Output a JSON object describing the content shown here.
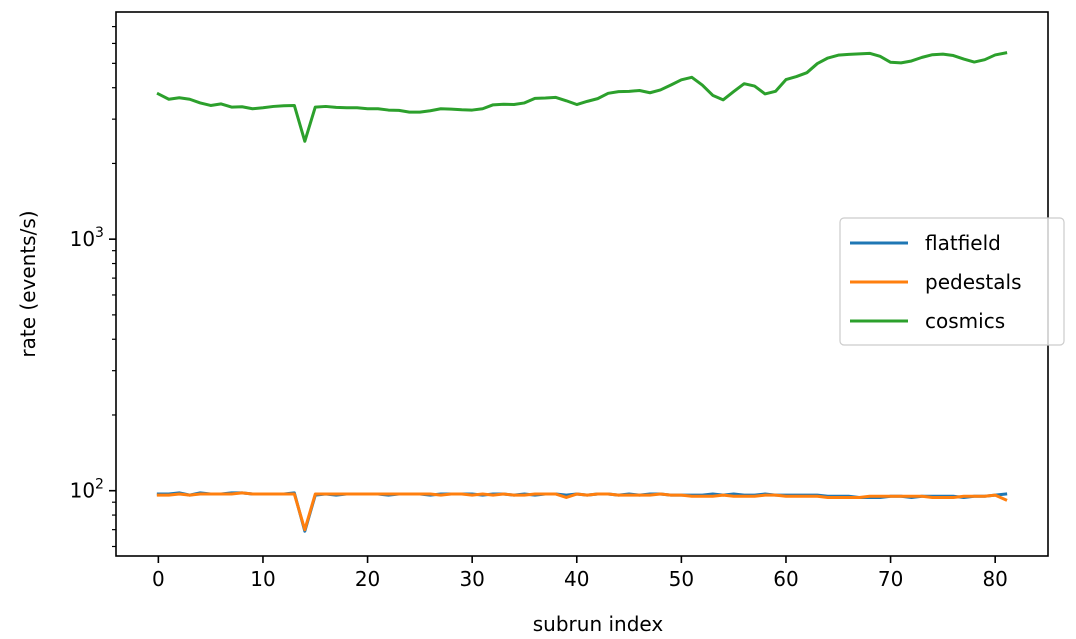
{
  "chart_data": {
    "type": "line",
    "title": "",
    "xlabel": "subrun index",
    "ylabel": "rate (events/s)",
    "xlim": [
      -4.05,
      85.05
    ],
    "ylim": [
      55,
      8000
    ],
    "yscale": "log",
    "grid": false,
    "legend_position": "center-right",
    "x_ticks": [
      0,
      10,
      20,
      30,
      40,
      50,
      60,
      70,
      80
    ],
    "y_major_ticks": [
      {
        "value": 100,
        "base": "10",
        "exp": "2"
      },
      {
        "value": 1000,
        "base": "10",
        "exp": "3"
      }
    ],
    "y_minor_ticks": [
      60,
      70,
      80,
      90,
      200,
      300,
      400,
      500,
      600,
      700,
      800,
      900,
      2000,
      3000,
      4000,
      5000,
      6000,
      7000
    ],
    "series": [
      {
        "name": "flatfield",
        "color": "#1f77b4",
        "values": [
          97,
          97,
          98,
          96,
          98,
          97,
          97,
          98,
          98,
          97,
          97,
          97,
          97,
          98,
          69,
          96,
          97,
          96,
          97,
          97,
          97,
          97,
          96,
          97,
          97,
          97,
          96,
          97,
          97,
          97,
          97,
          96,
          97,
          97,
          96,
          97,
          96,
          97,
          97,
          96,
          97,
          96,
          97,
          97,
          96,
          97,
          96,
          97,
          97,
          96,
          96,
          96,
          96,
          97,
          96,
          97,
          96,
          96,
          97,
          96,
          96,
          96,
          96,
          96,
          95,
          95,
          95,
          94,
          94,
          94,
          95,
          95,
          94,
          95,
          95,
          95,
          95,
          94,
          95,
          95,
          96,
          97
        ]
      },
      {
        "name": "pedestals",
        "color": "#ff7f0e",
        "values": [
          96,
          96,
          97,
          96,
          97,
          97,
          97,
          97,
          98,
          97,
          97,
          97,
          97,
          97,
          70,
          97,
          97,
          97,
          97,
          97,
          97,
          97,
          97,
          97,
          97,
          97,
          97,
          96,
          97,
          97,
          96,
          97,
          96,
          97,
          96,
          96,
          97,
          97,
          97,
          94,
          97,
          96,
          97,
          97,
          96,
          96,
          96,
          96,
          97,
          96,
          96,
          95,
          95,
          95,
          96,
          95,
          95,
          95,
          96,
          96,
          95,
          95,
          95,
          95,
          94,
          94,
          94,
          94,
          95,
          95,
          95,
          95,
          95,
          95,
          94,
          94,
          94,
          95,
          95,
          95,
          96,
          92
        ]
      },
      {
        "name": "cosmics",
        "color": "#2ca02c",
        "values": [
          3780,
          3600,
          3650,
          3600,
          3480,
          3400,
          3450,
          3350,
          3360,
          3300,
          3330,
          3370,
          3390,
          3400,
          2450,
          3350,
          3370,
          3340,
          3330,
          3330,
          3300,
          3300,
          3260,
          3250,
          3200,
          3200,
          3240,
          3300,
          3290,
          3270,
          3260,
          3300,
          3420,
          3440,
          3430,
          3480,
          3630,
          3640,
          3660,
          3550,
          3430,
          3530,
          3620,
          3800,
          3860,
          3870,
          3900,
          3820,
          3920,
          4100,
          4300,
          4400,
          4100,
          3730,
          3580,
          3860,
          4150,
          4060,
          3780,
          3870,
          4310,
          4430,
          4590,
          4990,
          5250,
          5390,
          5430,
          5450,
          5480,
          5330,
          5050,
          5020,
          5110,
          5280,
          5410,
          5440,
          5370,
          5200,
          5060,
          5170,
          5400,
          5500
        ]
      }
    ]
  }
}
